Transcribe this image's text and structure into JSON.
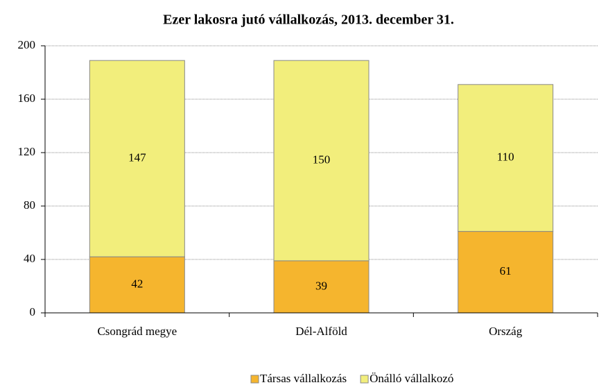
{
  "chart_data": {
    "type": "bar",
    "stacked": true,
    "title": "Ezer lakosra jutó vállalkozás, 2013. december 31.",
    "categories": [
      "Csongrád megye",
      "Dél-Alföld",
      "Ország"
    ],
    "series": [
      {
        "name": "Társas vállalkozás",
        "color": "#f5b52e",
        "values": [
          42,
          39,
          61
        ]
      },
      {
        "name": "Önálló vállalkozó",
        "color": "#f2ee7c",
        "values": [
          147,
          150,
          110
        ]
      }
    ],
    "ylim": [
      0,
      200
    ],
    "yticks": [
      0,
      40,
      80,
      120,
      160,
      200
    ],
    "grid": true,
    "legend": "bottom"
  }
}
